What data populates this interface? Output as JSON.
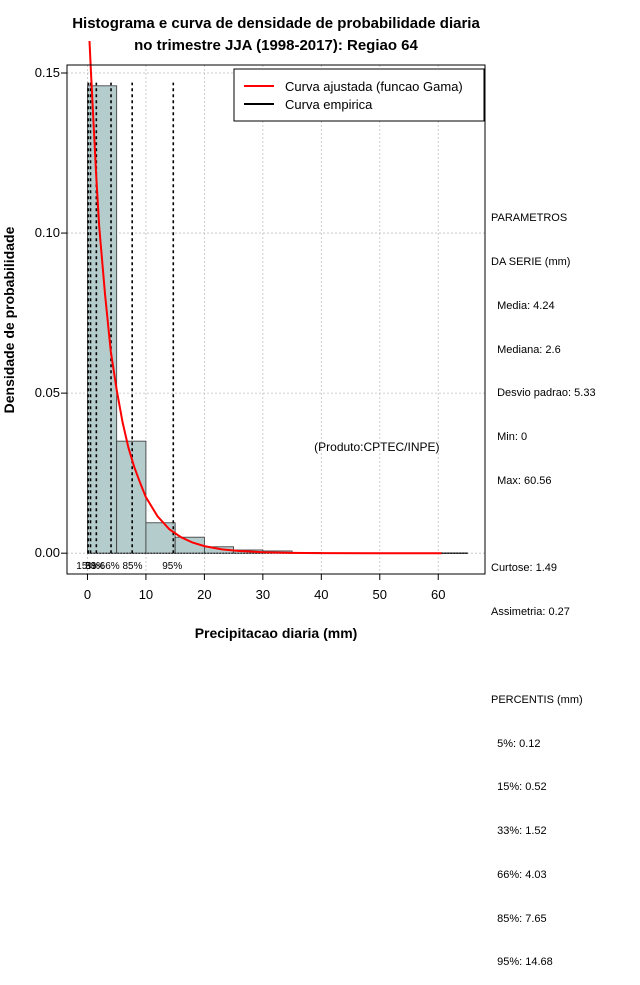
{
  "chart_data": {
    "type": "bar",
    "title_line1": "Histograma e curva de densidade de probabilidade diaria",
    "title_line2": "no trimestre JJA (1998-2017): Regiao 64",
    "xlabel": "Precipitacao diaria (mm)",
    "ylabel": "Densidade de probabilidade",
    "xlim": [
      -3.5,
      68
    ],
    "ylim": [
      -0.0065,
      0.1525
    ],
    "x_ticks": [
      0,
      10,
      20,
      30,
      40,
      50,
      60
    ],
    "x_tick_labels": [
      "0",
      "10",
      "20",
      "30",
      "40",
      "50",
      "60"
    ],
    "y_ticks": [
      0.0,
      0.05,
      0.1,
      0.15
    ],
    "y_tick_labels": [
      "0.00",
      "0.05",
      "0.10",
      "0.15"
    ],
    "grid": true,
    "bins": [
      {
        "x0": 0,
        "x1": 5,
        "density": 0.146
      },
      {
        "x0": 5,
        "x1": 10,
        "density": 0.035
      },
      {
        "x0": 10,
        "x1": 15,
        "density": 0.0095
      },
      {
        "x0": 15,
        "x1": 20,
        "density": 0.005
      },
      {
        "x0": 20,
        "x1": 25,
        "density": 0.002
      },
      {
        "x0": 25,
        "x1": 30,
        "density": 0.001
      },
      {
        "x0": 30,
        "x1": 35,
        "density": 0.0007
      },
      {
        "x0": 35,
        "x1": 40,
        "density": 0.0002
      },
      {
        "x0": 40,
        "x1": 45,
        "density": 0.0001
      },
      {
        "x0": 45,
        "x1": 50,
        "density": 0.0001
      },
      {
        "x0": 50,
        "x1": 55,
        "density": 0.0001
      },
      {
        "x0": 55,
        "x1": 60,
        "density": 0.0001
      },
      {
        "x0": 60,
        "x1": 65,
        "density": 0.0001
      }
    ],
    "gamma_fit": {
      "name": "Curva ajustada (funcao Gama)",
      "color": "#ff0000",
      "x_start": 0.35,
      "x_end": 60.56,
      "samples": [
        [
          0.35,
          0.16
        ],
        [
          0.6,
          0.15
        ],
        [
          1.5,
          0.118
        ],
        [
          2.0,
          0.102
        ],
        [
          3.0,
          0.081
        ],
        [
          4.0,
          0.063
        ],
        [
          5.0,
          0.051
        ],
        [
          6.0,
          0.041
        ],
        [
          7.0,
          0.033
        ],
        [
          8.0,
          0.027
        ],
        [
          9.0,
          0.022
        ],
        [
          10.0,
          0.0175
        ],
        [
          12.0,
          0.0115
        ],
        [
          14.0,
          0.0075
        ],
        [
          16.0,
          0.005
        ],
        [
          18.0,
          0.0033
        ],
        [
          20.0,
          0.0022
        ],
        [
          23.0,
          0.0012
        ],
        [
          26.0,
          0.0007
        ],
        [
          30.0,
          0.0003
        ],
        [
          35.0,
          0.0001
        ],
        [
          40.0,
          4e-05
        ],
        [
          50.0,
          0.0
        ],
        [
          60.56,
          0.0
        ]
      ]
    },
    "empirical_curve": {
      "name": "Curva empirica",
      "color": "#000000",
      "x_start": 0.0,
      "x_end": 65.0
    },
    "percentile_lines": [
      {
        "label": "5%",
        "value": 0.12
      },
      {
        "label": "15%",
        "value": 0.52
      },
      {
        "label": "33%",
        "value": 1.52
      },
      {
        "label": "66%",
        "value": 4.03
      },
      {
        "label": "85%",
        "value": 7.65
      },
      {
        "label": "95%",
        "value": 14.68
      }
    ],
    "percentile_axis_labels": [
      {
        "text": "15%",
        "x": -0.2
      },
      {
        "text": "5%",
        "x": 0.9
      },
      {
        "text": "33%",
        "x": 1.3
      },
      {
        "text": "66%",
        "x": 3.8
      },
      {
        "text": "85%",
        "x": 7.7
      },
      {
        "text": "95%",
        "x": 14.5
      }
    ],
    "bar_fill": "#b5cccd",
    "annotation": "(Produto:CPTEC/INPE)",
    "annotation_x": 49.5,
    "annotation_y": 0.0332,
    "legend_position": "top-right"
  },
  "sidebar": {
    "params_heading_1": "PARAMETROS",
    "params_heading_2": "DA SERIE (mm)",
    "media": "  Media: 4.24",
    "mediana": "  Mediana: 2.6",
    "desvio": "  Desvio padrao: 5.33",
    "min": "  Min: 0",
    "max": "  Max: 60.56",
    "curtose": "Curtose: 1.49",
    "assimetria": "Assimetria: 0.27",
    "percentis_heading": "PERCENTIS (mm)",
    "p5": "  5%: 0.12",
    "p15": "  15%: 0.52",
    "p33": "  33%: 1.52",
    "p66": "  66%: 4.03",
    "p85": "  85%: 7.65",
    "p95": "  95%: 14.68"
  }
}
